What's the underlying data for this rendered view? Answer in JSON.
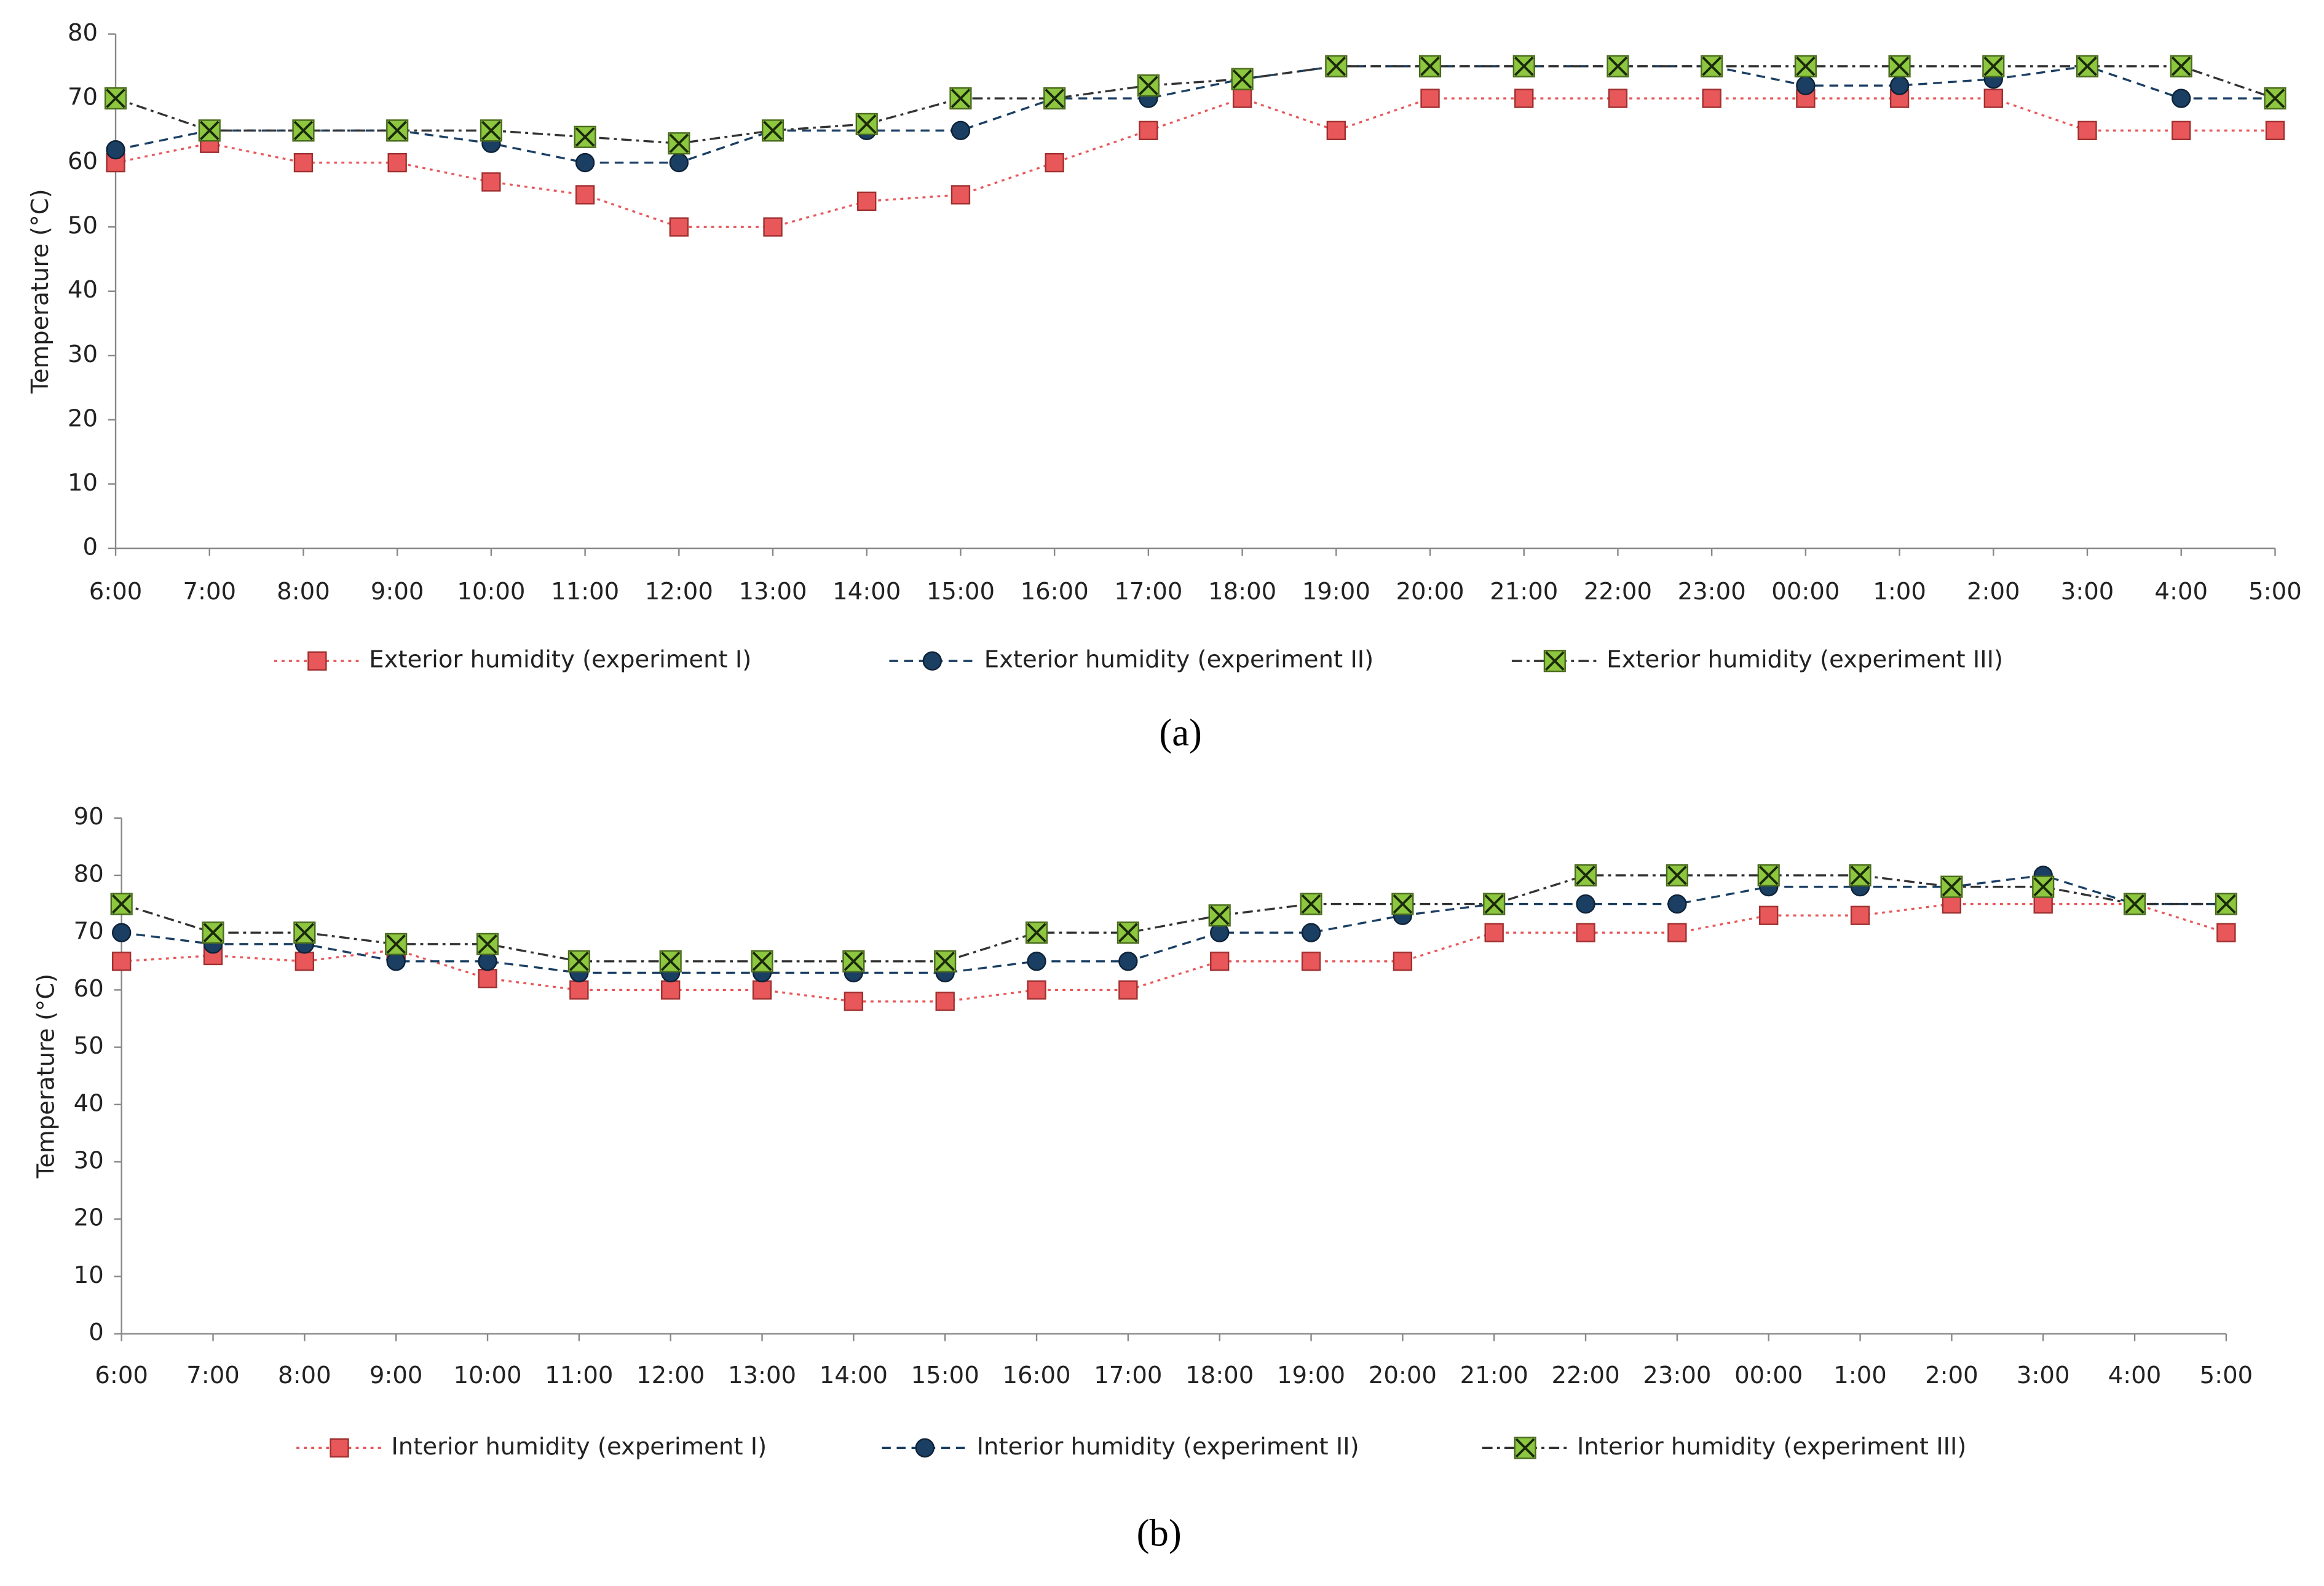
{
  "chart_data": [
    {
      "type": "line",
      "ylabel": "Temperature (°C)",
      "caption": "(a)",
      "categories": [
        "6:00",
        "7:00",
        "8:00",
        "9:00",
        "10:00",
        "11:00",
        "12:00",
        "13:00",
        "14:00",
        "15:00",
        "16:00",
        "17:00",
        "18:00",
        "19:00",
        "20:00",
        "21:00",
        "22:00",
        "23:00",
        "00:00",
        "1:00",
        "2:00",
        "3:00",
        "4:00",
        "5:00"
      ],
      "ylim": [
        0,
        80
      ],
      "yticks": [
        0,
        10,
        20,
        30,
        40,
        50,
        60,
        70,
        80
      ],
      "grid": false,
      "series": [
        {
          "name": "Exterior humidity (experiment I)",
          "color": "#e8585a",
          "values": [
            60,
            63,
            60,
            60,
            57,
            55,
            50,
            50,
            54,
            55,
            60,
            65,
            70,
            65,
            70,
            70,
            70,
            70,
            70,
            70,
            70,
            65,
            65,
            65
          ]
        },
        {
          "name": "Exterior humidity (experiment II)",
          "color": "#1b3f63",
          "values": [
            62,
            65,
            65,
            65,
            63,
            60,
            60,
            65,
            65,
            65,
            70,
            70,
            73,
            75,
            75,
            75,
            75,
            75,
            72,
            72,
            73,
            75,
            70,
            70
          ]
        },
        {
          "name": "Exterior humidity (experiment III)",
          "color": "#8dc63f",
          "values": [
            70,
            65,
            65,
            65,
            65,
            64,
            63,
            65,
            66,
            70,
            70,
            72,
            73,
            75,
            75,
            75,
            75,
            75,
            75,
            75,
            75,
            75,
            75,
            70
          ]
        }
      ]
    },
    {
      "type": "line",
      "ylabel": "Temperature (°C)",
      "caption": "(b)",
      "categories": [
        "6:00",
        "7:00",
        "8:00",
        "9:00",
        "10:00",
        "11:00",
        "12:00",
        "13:00",
        "14:00",
        "15:00",
        "16:00",
        "17:00",
        "18:00",
        "19:00",
        "20:00",
        "21:00",
        "22:00",
        "23:00",
        "00:00",
        "1:00",
        "2:00",
        "3:00",
        "4:00",
        "5:00"
      ],
      "ylim": [
        0,
        90
      ],
      "yticks": [
        0,
        10,
        20,
        30,
        40,
        50,
        60,
        70,
        80,
        90
      ],
      "grid": false,
      "series": [
        {
          "name": "Interior humidity (experiment I)",
          "color": "#e8585a",
          "values": [
            65,
            66,
            65,
            67,
            62,
            60,
            60,
            60,
            58,
            58,
            60,
            60,
            65,
            65,
            65,
            70,
            70,
            70,
            73,
            73,
            75,
            75,
            75,
            70
          ]
        },
        {
          "name": "Interior humidity (experiment II)",
          "color": "#1b3f63",
          "values": [
            70,
            68,
            68,
            65,
            65,
            63,
            63,
            63,
            63,
            63,
            65,
            65,
            70,
            70,
            73,
            75,
            75,
            75,
            78,
            78,
            78,
            80,
            75,
            75
          ]
        },
        {
          "name": "Interior humidity (experiment III)",
          "color": "#8dc63f",
          "values": [
            75,
            70,
            70,
            68,
            68,
            65,
            65,
            65,
            65,
            65,
            70,
            70,
            73,
            75,
            75,
            75,
            80,
            80,
            80,
            80,
            78,
            78,
            75,
            75
          ]
        }
      ]
    }
  ]
}
